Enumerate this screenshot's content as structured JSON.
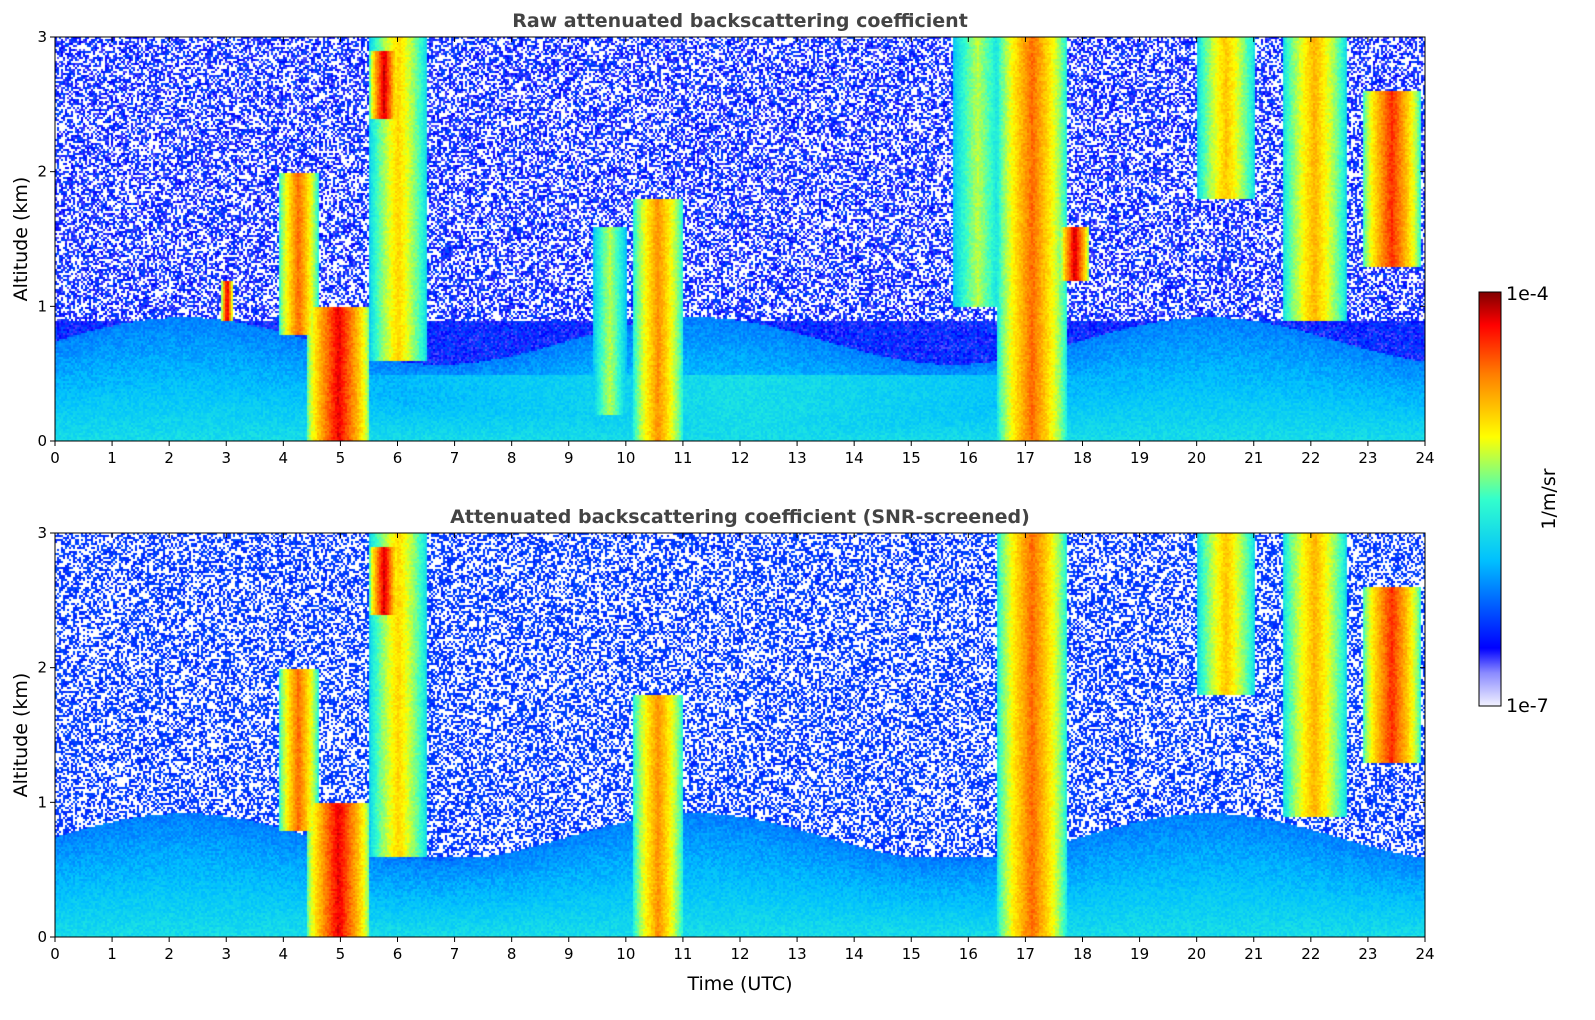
{
  "chart_data": [
    {
      "type": "heatmap",
      "title": "Raw attenuated backscattering coefficient",
      "xlabel": "",
      "ylabel": "Altitude (km)",
      "xlim": [
        0,
        24
      ],
      "ylim": [
        0,
        3
      ],
      "xticks": [
        "0",
        "1",
        "2",
        "3",
        "4",
        "5",
        "6",
        "7",
        "8",
        "9",
        "10",
        "11",
        "12",
        "13",
        "14",
        "15",
        "16",
        "17",
        "18",
        "19",
        "20",
        "21",
        "22",
        "23",
        "24"
      ],
      "yticks": [
        "0",
        "1",
        "2",
        "3"
      ],
      "screened": false,
      "features": [
        {
          "t0": 4.4,
          "t1": 5.5,
          "z0": 0.0,
          "z1": 1.0,
          "level": 0.93
        },
        {
          "t0": 3.9,
          "t1": 4.6,
          "z0": 0.8,
          "z1": 2.0,
          "level": 0.82
        },
        {
          "t0": 5.5,
          "t1": 6.5,
          "z0": 0.6,
          "z1": 3.0,
          "level": 0.7
        },
        {
          "t0": 5.5,
          "t1": 6.0,
          "z0": 2.4,
          "z1": 2.9,
          "level": 0.95
        },
        {
          "t0": 2.9,
          "t1": 3.1,
          "z0": 0.9,
          "z1": 1.2,
          "level": 0.95
        },
        {
          "t0": 10.1,
          "t1": 11.0,
          "z0": 0.0,
          "z1": 1.8,
          "level": 0.78
        },
        {
          "t0": 9.4,
          "t1": 10.0,
          "z0": 0.2,
          "z1": 1.6,
          "level": 0.6
        },
        {
          "t0": 16.5,
          "t1": 17.7,
          "z0": 0.0,
          "z1": 3.0,
          "level": 0.82
        },
        {
          "t0": 15.7,
          "t1": 16.6,
          "z0": 1.0,
          "z1": 3.0,
          "level": 0.6
        },
        {
          "t0": 17.6,
          "t1": 18.1,
          "z0": 1.2,
          "z1": 1.6,
          "level": 0.95
        },
        {
          "t0": 20.0,
          "t1": 21.0,
          "z0": 1.8,
          "z1": 3.0,
          "level": 0.72
        },
        {
          "t0": 21.5,
          "t1": 22.6,
          "z0": 0.9,
          "z1": 3.0,
          "level": 0.74
        },
        {
          "t0": 22.9,
          "t1": 23.9,
          "z0": 1.3,
          "z1": 2.6,
          "level": 0.88
        },
        {
          "t0": 0.0,
          "t1": 24.0,
          "z0": 0.0,
          "z1": 0.5,
          "level": 0.42
        }
      ]
    },
    {
      "type": "heatmap",
      "title": "Attenuated backscattering coefficient (SNR-screened)",
      "xlabel": "Time (UTC)",
      "ylabel": "Altitude (km)",
      "xlim": [
        0,
        24
      ],
      "ylim": [
        0,
        3
      ],
      "xticks": [
        "0",
        "1",
        "2",
        "3",
        "4",
        "5",
        "6",
        "7",
        "8",
        "9",
        "10",
        "11",
        "12",
        "13",
        "14",
        "15",
        "16",
        "17",
        "18",
        "19",
        "20",
        "21",
        "22",
        "23",
        "24"
      ],
      "yticks": [
        "0",
        "1",
        "2",
        "3"
      ],
      "screened": true,
      "features": [
        {
          "t0": 4.4,
          "t1": 5.5,
          "z0": 0.0,
          "z1": 1.0,
          "level": 0.93
        },
        {
          "t0": 3.9,
          "t1": 4.6,
          "z0": 0.8,
          "z1": 2.0,
          "level": 0.82
        },
        {
          "t0": 5.5,
          "t1": 6.5,
          "z0": 0.6,
          "z1": 3.0,
          "level": 0.7
        },
        {
          "t0": 5.5,
          "t1": 6.0,
          "z0": 2.4,
          "z1": 2.9,
          "level": 0.95
        },
        {
          "t0": 10.1,
          "t1": 11.0,
          "z0": 0.0,
          "z1": 1.8,
          "level": 0.78
        },
        {
          "t0": 16.5,
          "t1": 17.7,
          "z0": 0.0,
          "z1": 3.0,
          "level": 0.82
        },
        {
          "t0": 20.0,
          "t1": 21.0,
          "z0": 1.8,
          "z1": 3.0,
          "level": 0.72
        },
        {
          "t0": 21.5,
          "t1": 22.6,
          "z0": 0.9,
          "z1": 3.0,
          "level": 0.74
        },
        {
          "t0": 22.9,
          "t1": 23.9,
          "z0": 1.3,
          "z1": 2.6,
          "level": 0.88
        },
        {
          "t0": 0.0,
          "t1": 24.0,
          "z0": 0.0,
          "z1": 0.6,
          "level": 0.3
        }
      ]
    }
  ],
  "colorbar": {
    "label": "1/m/sr",
    "max_label": "1e-4",
    "min_label": "1e-7",
    "colormap": [
      "#f2f2ff",
      "#0000ff",
      "#00bfff",
      "#33ffcc",
      "#ffff00",
      "#ff7f00",
      "#ff0000",
      "#800000"
    ]
  }
}
